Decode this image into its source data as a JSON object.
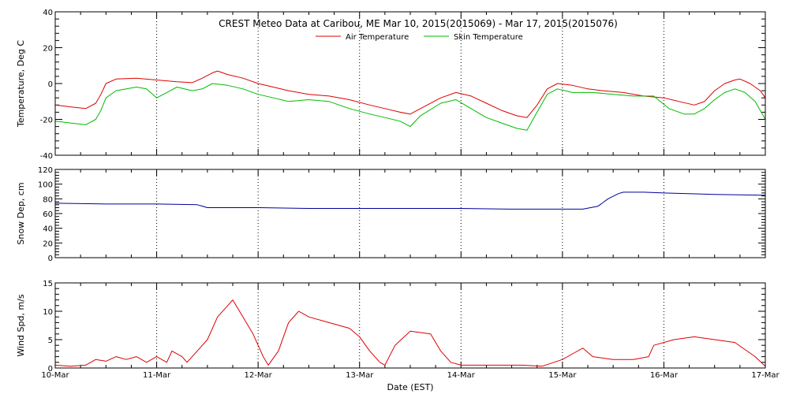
{
  "chart_data": {
    "type": "line",
    "title": "CREST Meteo Data at Caribou, ME   Mar 10, 2015(2015069) - Mar 17, 2015(2015076)",
    "xlabel": "Date (EST)",
    "x_tick_labels": [
      "10-Mar",
      "11-Mar",
      "12-Mar",
      "13-Mar",
      "14-Mar",
      "15-Mar",
      "16-Mar",
      "17-Mar"
    ],
    "xlim": [
      0,
      7
    ],
    "grid": "vertical dotted at day boundaries",
    "legend": "top-center",
    "panels": [
      {
        "ylabel": "Temperature, Deg C",
        "ylim": [
          -40,
          40
        ],
        "yticks": [
          -40,
          -20,
          0,
          20,
          40
        ],
        "series": [
          {
            "name": "Air Temperature",
            "color": "#dd0000",
            "points": [
              [
                0,
                -12
              ],
              [
                0.15,
                -13
              ],
              [
                0.3,
                -14
              ],
              [
                0.4,
                -11
              ],
              [
                0.45,
                -6
              ],
              [
                0.5,
                0
              ],
              [
                0.6,
                2.5
              ],
              [
                0.8,
                3
              ],
              [
                1.0,
                2
              ],
              [
                1.2,
                1
              ],
              [
                1.35,
                0.5
              ],
              [
                1.45,
                3
              ],
              [
                1.55,
                6
              ],
              [
                1.6,
                7
              ],
              [
                1.7,
                5
              ],
              [
                1.85,
                3
              ],
              [
                2.0,
                0
              ],
              [
                2.15,
                -2
              ],
              [
                2.3,
                -4
              ],
              [
                2.5,
                -6
              ],
              [
                2.7,
                -7
              ],
              [
                2.9,
                -9
              ],
              [
                3.1,
                -12
              ],
              [
                3.25,
                -14
              ],
              [
                3.4,
                -16
              ],
              [
                3.5,
                -17
              ],
              [
                3.6,
                -14
              ],
              [
                3.8,
                -8
              ],
              [
                3.95,
                -5
              ],
              [
                4.1,
                -7
              ],
              [
                4.25,
                -11
              ],
              [
                4.4,
                -15
              ],
              [
                4.55,
                -18
              ],
              [
                4.65,
                -19
              ],
              [
                4.75,
                -12
              ],
              [
                4.85,
                -3
              ],
              [
                4.95,
                0
              ],
              [
                5.1,
                -1
              ],
              [
                5.25,
                -3
              ],
              [
                5.4,
                -4
              ],
              [
                5.6,
                -5
              ],
              [
                5.8,
                -7
              ],
              [
                6.0,
                -8
              ],
              [
                6.15,
                -10
              ],
              [
                6.3,
                -12
              ],
              [
                6.4,
                -10
              ],
              [
                6.5,
                -4
              ],
              [
                6.6,
                0
              ],
              [
                6.7,
                2
              ],
              [
                6.75,
                2.5
              ],
              [
                6.85,
                0
              ],
              [
                6.95,
                -4
              ],
              [
                7.0,
                -8
              ]
            ]
          },
          {
            "name": "Skin Temperature",
            "color": "#00bb00",
            "points": [
              [
                0,
                -21
              ],
              [
                0.15,
                -22
              ],
              [
                0.3,
                -23
              ],
              [
                0.4,
                -20
              ],
              [
                0.45,
                -15
              ],
              [
                0.5,
                -8
              ],
              [
                0.6,
                -4
              ],
              [
                0.8,
                -2
              ],
              [
                0.9,
                -3
              ],
              [
                1.0,
                -8
              ],
              [
                1.1,
                -5
              ],
              [
                1.2,
                -2
              ],
              [
                1.35,
                -4
              ],
              [
                1.45,
                -3
              ],
              [
                1.55,
                0
              ],
              [
                1.7,
                -1
              ],
              [
                1.85,
                -3
              ],
              [
                2.0,
                -6
              ],
              [
                2.15,
                -8
              ],
              [
                2.3,
                -10
              ],
              [
                2.5,
                -9
              ],
              [
                2.7,
                -10
              ],
              [
                2.9,
                -14
              ],
              [
                3.1,
                -17
              ],
              [
                3.25,
                -19
              ],
              [
                3.4,
                -21
              ],
              [
                3.5,
                -24
              ],
              [
                3.6,
                -18
              ],
              [
                3.8,
                -11
              ],
              [
                3.95,
                -9
              ],
              [
                4.1,
                -14
              ],
              [
                4.25,
                -19
              ],
              [
                4.4,
                -22
              ],
              [
                4.55,
                -25
              ],
              [
                4.65,
                -26
              ],
              [
                4.75,
                -16
              ],
              [
                4.85,
                -6
              ],
              [
                4.95,
                -3
              ],
              [
                5.1,
                -5
              ],
              [
                5.3,
                -5
              ],
              [
                5.5,
                -6
              ],
              [
                5.7,
                -7
              ],
              [
                5.9,
                -7
              ],
              [
                6.05,
                -14
              ],
              [
                6.2,
                -17
              ],
              [
                6.3,
                -17
              ],
              [
                6.4,
                -14
              ],
              [
                6.5,
                -9
              ],
              [
                6.6,
                -5
              ],
              [
                6.7,
                -3
              ],
              [
                6.8,
                -5
              ],
              [
                6.9,
                -10
              ],
              [
                7.0,
                -20
              ]
            ]
          }
        ]
      },
      {
        "ylabel": "Snow Dep, cm",
        "ylim": [
          0,
          120
        ],
        "yticks": [
          0,
          20,
          40,
          60,
          80,
          100,
          120
        ],
        "series": [
          {
            "name": "Snow Depth",
            "color": "#000099",
            "points": [
              [
                0,
                74
              ],
              [
                0.5,
                73
              ],
              [
                1.0,
                73
              ],
              [
                1.4,
                72
              ],
              [
                1.5,
                68
              ],
              [
                2.0,
                68
              ],
              [
                2.5,
                67
              ],
              [
                3.0,
                67
              ],
              [
                3.5,
                67
              ],
              [
                4.0,
                67
              ],
              [
                4.5,
                66
              ],
              [
                5.0,
                66
              ],
              [
                5.2,
                66
              ],
              [
                5.35,
                70
              ],
              [
                5.45,
                80
              ],
              [
                5.55,
                87
              ],
              [
                5.6,
                89
              ],
              [
                5.8,
                89
              ],
              [
                6.0,
                88
              ],
              [
                6.5,
                86
              ],
              [
                7.0,
                85
              ]
            ]
          }
        ]
      },
      {
        "ylabel": "Wind Spd, m/s",
        "ylim": [
          0,
          15
        ],
        "yticks": [
          0,
          5,
          10,
          15
        ],
        "series": [
          {
            "name": "Wind Speed",
            "color": "#dd0000",
            "points": [
              [
                0,
                0.5
              ],
              [
                0.15,
                0.3
              ],
              [
                0.3,
                0.5
              ],
              [
                0.4,
                1.5
              ],
              [
                0.5,
                1.2
              ],
              [
                0.6,
                2
              ],
              [
                0.7,
                1.5
              ],
              [
                0.8,
                2
              ],
              [
                0.9,
                1
              ],
              [
                1.0,
                2
              ],
              [
                1.1,
                1
              ],
              [
                1.15,
                3
              ],
              [
                1.25,
                2
              ],
              [
                1.3,
                1
              ],
              [
                1.4,
                3
              ],
              [
                1.5,
                5
              ],
              [
                1.6,
                9
              ],
              [
                1.7,
                11
              ],
              [
                1.75,
                12
              ],
              [
                1.85,
                9
              ],
              [
                1.95,
                6
              ],
              [
                2.05,
                2
              ],
              [
                2.1,
                0.5
              ],
              [
                2.2,
                3
              ],
              [
                2.3,
                8
              ],
              [
                2.4,
                10
              ],
              [
                2.5,
                9
              ],
              [
                2.7,
                8
              ],
              [
                2.9,
                7
              ],
              [
                3.0,
                5.5
              ],
              [
                3.1,
                3
              ],
              [
                3.2,
                1
              ],
              [
                3.25,
                0.5
              ],
              [
                3.35,
                4
              ],
              [
                3.5,
                6.5
              ],
              [
                3.7,
                6
              ],
              [
                3.8,
                3
              ],
              [
                3.9,
                1
              ],
              [
                4.0,
                0.5
              ],
              [
                4.3,
                0.5
              ],
              [
                4.6,
                0.5
              ],
              [
                4.8,
                0.3
              ],
              [
                5.0,
                1.5
              ],
              [
                5.1,
                2.5
              ],
              [
                5.2,
                3.5
              ],
              [
                5.3,
                2
              ],
              [
                5.5,
                1.5
              ],
              [
                5.7,
                1.5
              ],
              [
                5.85,
                2
              ],
              [
                5.9,
                4
              ],
              [
                6.1,
                5
              ],
              [
                6.3,
                5.5
              ],
              [
                6.5,
                5
              ],
              [
                6.7,
                4.5
              ],
              [
                6.9,
                2
              ],
              [
                7.0,
                0.3
              ]
            ]
          }
        ]
      }
    ]
  }
}
